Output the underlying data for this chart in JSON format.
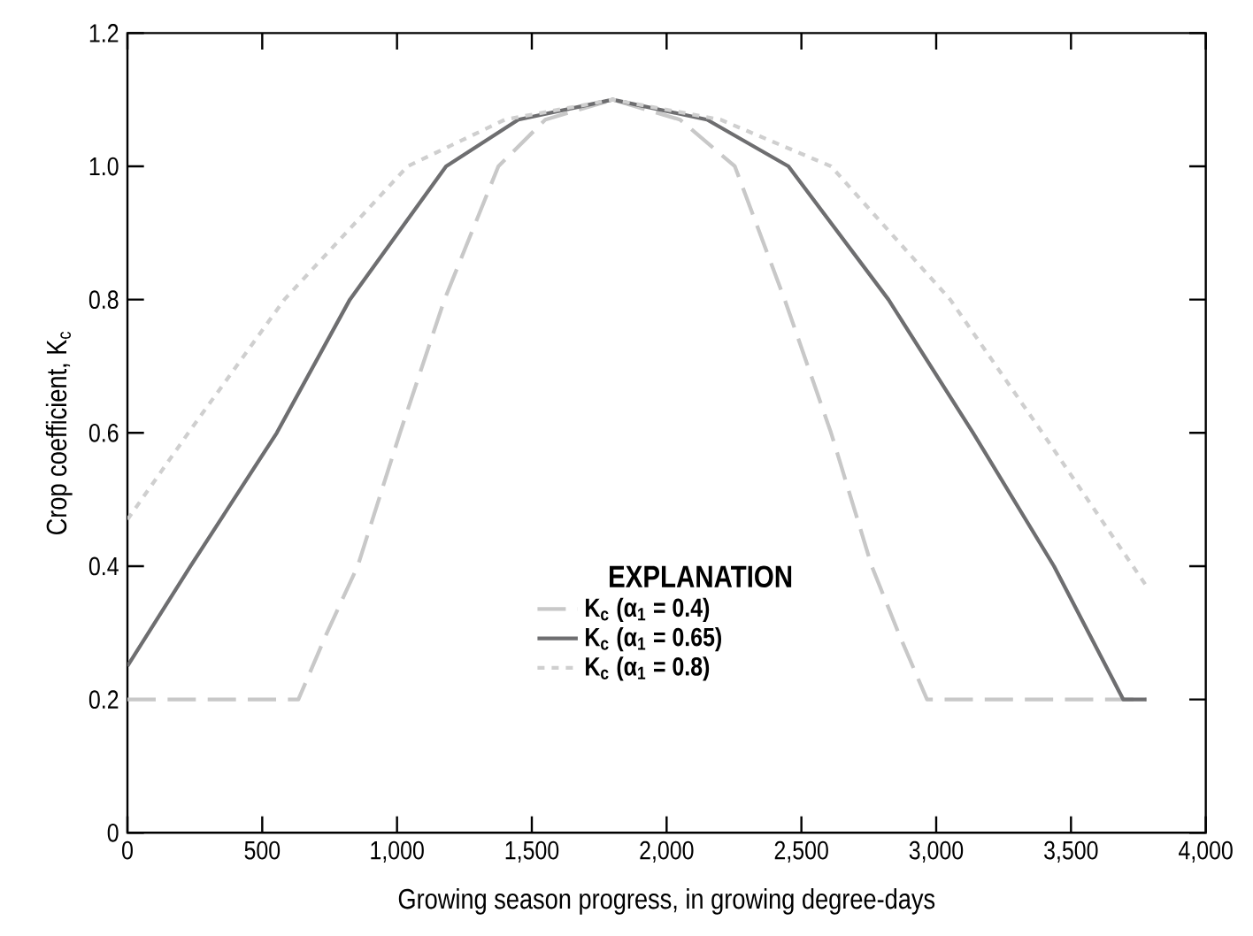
{
  "chart_data": {
    "type": "line",
    "xlabel": "Growing season progress, in growing degree-days",
    "ylabel": "Crop coefficient, K$_{c}$",
    "legend_title": "EXPLANATION",
    "legend": "bottom",
    "grid": false,
    "xlim": [
      0,
      4000
    ],
    "ylim": [
      0,
      1.2
    ],
    "xticks": [
      0,
      500,
      {
        "value": 1000,
        "label": "1,000"
      },
      {
        "value": 1500,
        "label": "1,500"
      },
      {
        "value": 2000,
        "label": "2,000"
      },
      {
        "value": 2500,
        "label": "2,500"
      },
      {
        "value": 3000,
        "label": "3,000"
      },
      {
        "value": 3500,
        "label": "3,500"
      },
      {
        "value": 4000,
        "label": "4,000"
      }
    ],
    "yticks": [
      0,
      0.2,
      0.4,
      0.6,
      0.8,
      {
        "value": 1.0,
        "label": "1.0"
      },
      1.2
    ],
    "series": [
      {
        "name": "K$_{c}$ (α$_{1}$ = 0.4)",
        "color": "#c8c8c8",
        "line_style": "dashed",
        "x": [
          0,
          634,
          740,
          854,
          1011,
          1176,
          1376,
          1550,
          1800,
          2050,
          2253,
          2438,
          2610,
          2761,
          2860,
          2966,
          3780
        ],
        "values": [
          0.2,
          0.2,
          0.3,
          0.4,
          0.6,
          0.8,
          1.0,
          1.07,
          1.1,
          1.07,
          1.0,
          0.8,
          0.6,
          0.4,
          0.3,
          0.2,
          0.2
        ]
      },
      {
        "name": "K$_{c}$ (α$_{1}$ = 0.65)",
        "color": "#6e6e70",
        "line_style": "solid",
        "x": [
          0,
          234,
          554,
          825,
          1182,
          1450,
          1800,
          2150,
          2452,
          2823,
          3137,
          3437,
          3694,
          3780
        ],
        "values": [
          0.25,
          0.4,
          0.6,
          0.8,
          1.0,
          1.07,
          1.1,
          1.07,
          1.0,
          0.8,
          0.6,
          0.4,
          0.2,
          0.2
        ]
      },
      {
        "name": "K$_{c}$ (α$_{1}$ = 0.8)",
        "color": "#cfcfcf",
        "line_style": "dotted",
        "x": [
          0,
          226,
          582,
          1039,
          1400,
          1800,
          2200,
          2610,
          3052,
          3394,
          3780
        ],
        "values": [
          0.47,
          0.6,
          0.8,
          1.0,
          1.07,
          1.1,
          1.07,
          1.0,
          0.8,
          0.6,
          0.37
        ]
      }
    ]
  }
}
